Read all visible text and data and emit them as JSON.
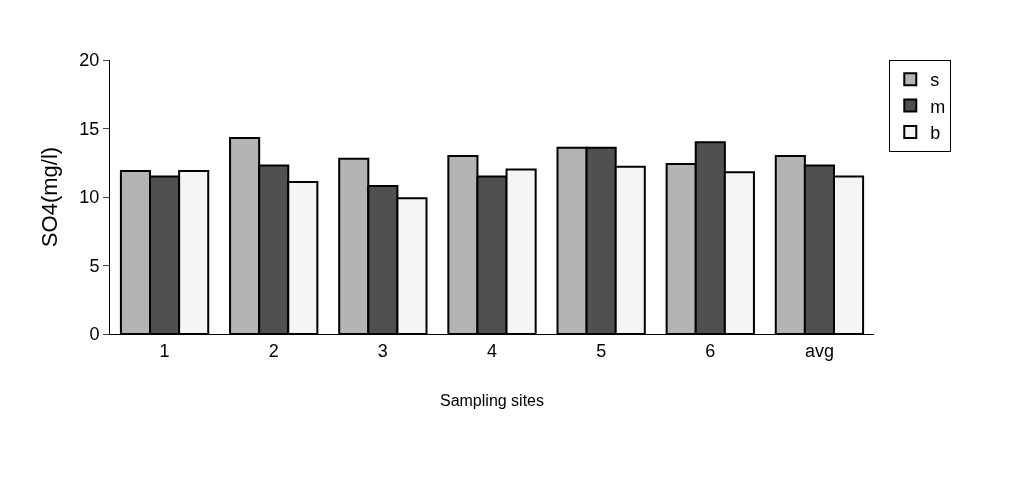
{
  "chart_data": {
    "type": "bar",
    "xlabel": "Sampling sites",
    "ylabel": "SO4(mg/l)",
    "categories": [
      "1",
      "2",
      "3",
      "4",
      "5",
      "6",
      "avg"
    ],
    "series": [
      {
        "name": "s",
        "color": "#b4b4b4",
        "values": [
          11.9,
          14.3,
          12.8,
          13.0,
          13.6,
          12.4,
          13.0
        ]
      },
      {
        "name": "m",
        "color": "#505050",
        "values": [
          11.5,
          12.3,
          10.8,
          11.5,
          13.6,
          14.0,
          12.3
        ]
      },
      {
        "name": "b",
        "color": "#f5f5f5",
        "values": [
          11.9,
          11.1,
          9.9,
          12.0,
          12.2,
          11.8,
          11.5
        ]
      }
    ],
    "ylim": [
      0,
      20
    ],
    "yticks": [
      0,
      5,
      10,
      15,
      20
    ],
    "grid": false,
    "legend": "top right"
  }
}
